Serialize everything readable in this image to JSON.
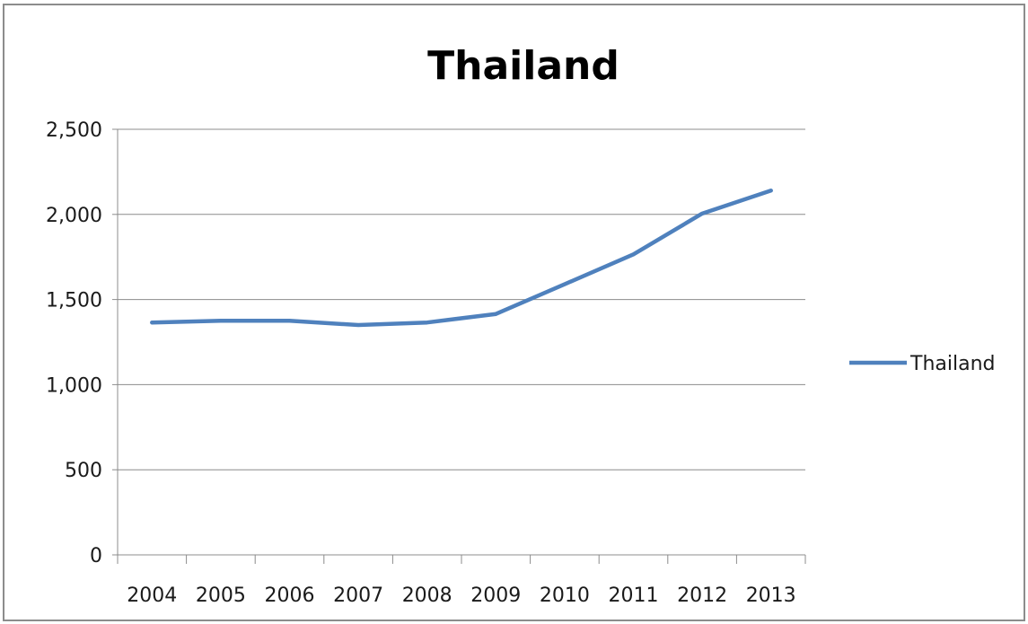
{
  "chart_data": {
    "type": "line",
    "title": "Thailand",
    "xlabel": "",
    "ylabel": "",
    "categories": [
      "2004",
      "2005",
      "2006",
      "2007",
      "2008",
      "2009",
      "2010",
      "2011",
      "2012",
      "2013"
    ],
    "series": [
      {
        "name": "Thailand",
        "values": [
          1365,
          1375,
          1375,
          1350,
          1365,
          1415,
          1590,
          1765,
          2005,
          2140
        ],
        "color": "#4f81bd"
      }
    ],
    "ylim": [
      0,
      2500
    ],
    "yticks": [
      0,
      500,
      1000,
      1500,
      2000,
      2500
    ],
    "ytick_labels": [
      "0",
      "500",
      "1,000",
      "1,500",
      "2,000",
      "2,500"
    ],
    "grid": true,
    "legend_position": "right"
  }
}
